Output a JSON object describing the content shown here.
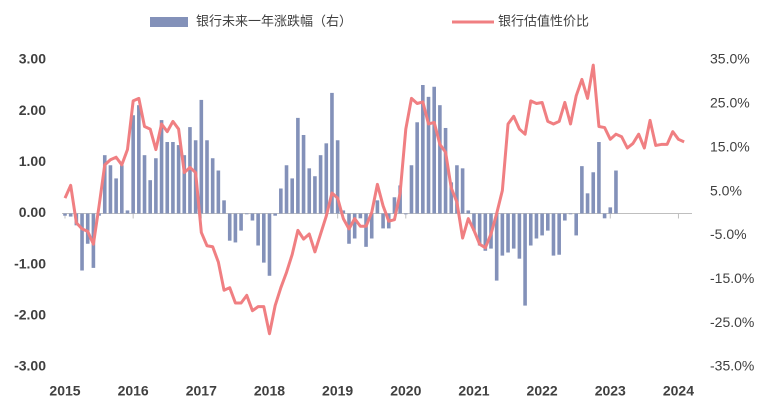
{
  "chart_data": {
    "type": "combo",
    "categories": [
      "2015",
      null,
      null,
      null,
      null,
      null,
      null,
      null,
      null,
      null,
      null,
      null,
      "2016",
      null,
      null,
      null,
      null,
      null,
      null,
      null,
      null,
      null,
      null,
      null,
      "2017",
      null,
      null,
      null,
      null,
      null,
      null,
      null,
      null,
      null,
      null,
      null,
      "2018",
      null,
      null,
      null,
      null,
      null,
      null,
      null,
      null,
      null,
      null,
      null,
      "2019",
      null,
      null,
      null,
      null,
      null,
      null,
      null,
      null,
      null,
      null,
      null,
      "2020",
      null,
      null,
      null,
      null,
      null,
      null,
      null,
      null,
      null,
      null,
      null,
      "2021",
      null,
      null,
      null,
      null,
      null,
      null,
      null,
      null,
      null,
      null,
      null,
      "2022",
      null,
      null,
      null,
      null,
      null,
      null,
      null,
      null,
      null,
      null,
      null,
      "2023",
      null,
      null,
      null,
      null,
      null,
      null,
      null,
      null,
      null,
      null,
      null,
      "2024",
      null
    ],
    "series": [
      {
        "name": "银行未来一年涨跌幅（右）",
        "type": "bar",
        "axis": "y2",
        "color": "#8391b9",
        "values": [
          -0.5,
          -0.7,
          -2.7,
          -13,
          -6.9,
          -12.4,
          -0.5,
          13.3,
          11,
          8,
          11,
          0.7,
          22.4,
          24.7,
          13.3,
          7.6,
          12.6,
          21.3,
          16.3,
          16.3,
          15.6,
          13.3,
          19.7,
          16.7,
          25.9,
          16.7,
          12.6,
          9.8,
          3,
          -6.2,
          -6.6,
          -3.9,
          0,
          -1.6,
          -7.3,
          -11.2,
          -14.2,
          -0.5,
          5.7,
          11,
          8,
          21.8,
          17.9,
          10.3,
          8.5,
          13.3,
          16,
          27.5,
          16.7,
          0.7,
          -6.9,
          -5.7,
          -1.1,
          -7.6,
          -5.7,
          3,
          -3.4,
          -3.4,
          3.7,
          6.4,
          0,
          11,
          20.8,
          29.3,
          26.6,
          28.9,
          24.7,
          19.5,
          7.1,
          11,
          10.3,
          0.7,
          -3.9,
          -7.3,
          -8.5,
          -8,
          -15.3,
          -9.6,
          -8.9,
          -8,
          -10.3,
          -21,
          -7.3,
          -5.7,
          -5,
          -3.9,
          -9.6,
          -9.4,
          -1.6,
          0,
          -5,
          10.8,
          4.6,
          9.4,
          16.3,
          -1.1,
          1.4,
          9.8,
          null,
          null,
          null,
          null,
          null,
          null,
          null,
          null,
          null,
          null,
          null,
          null
        ]
      },
      {
        "name": "银行估值性价比",
        "type": "line",
        "axis": "y",
        "color": "#f07f82",
        "values": [
          0.3,
          0.55,
          -0.18,
          -0.3,
          -0.35,
          -0.6,
          0.15,
          0.95,
          1.05,
          1.1,
          0.95,
          1.25,
          2.2,
          2.25,
          1.7,
          1.65,
          1.25,
          1.75,
          1.6,
          1.8,
          1.65,
          0.8,
          0.9,
          0.8,
          -0.37,
          -0.63,
          -0.65,
          -0.95,
          -1.5,
          -1.45,
          -1.75,
          -1.75,
          -1.6,
          -1.9,
          -1.82,
          -1.82,
          -2.35,
          -1.8,
          -1.45,
          -1.15,
          -0.8,
          -0.33,
          -0.5,
          -0.4,
          -0.75,
          -0.4,
          -0.05,
          0.4,
          0.3,
          -0.1,
          -0.3,
          -0.1,
          -0.25,
          -0.25,
          0.02,
          0.57,
          0.15,
          -0.15,
          -0.12,
          0.4,
          1.65,
          2.25,
          2.15,
          2.18,
          1.75,
          1.78,
          1.35,
          1.2,
          0.5,
          0.22,
          -0.48,
          -0.1,
          -0.33,
          -0.6,
          -0.67,
          -0.4,
          0,
          0.45,
          1.75,
          1.9,
          1.65,
          1.55,
          2.2,
          2.15,
          2.17,
          1.8,
          1.75,
          1.8,
          2.17,
          1.75,
          2.3,
          2.62,
          2.25,
          2.9,
          1.7,
          1.68,
          1.45,
          1.55,
          1.5,
          1.28,
          1.37,
          1.55,
          1.28,
          1.82,
          1.33,
          1.35,
          1.35,
          1.6,
          1.45,
          1.4
        ]
      }
    ],
    "ylim": [
      -3,
      3
    ],
    "yticks": [
      {
        "value": -3,
        "label": "-3.00"
      },
      {
        "value": -2,
        "label": "-2.00"
      },
      {
        "value": -1,
        "label": "-1.00"
      },
      {
        "value": 0,
        "label": "0.00"
      },
      {
        "value": 1,
        "label": "1.00"
      },
      {
        "value": 2,
        "label": "2.00"
      },
      {
        "value": 3,
        "label": "3.00"
      }
    ],
    "y2lim": [
      -35,
      35
    ],
    "y2ticks": [
      {
        "value": -35,
        "label": "-35.0%"
      },
      {
        "value": -25,
        "label": "-25.0%"
      },
      {
        "value": -15,
        "label": "-15.0%"
      },
      {
        "value": -5,
        "label": "-5.0%"
      },
      {
        "value": 5,
        "label": "5.0%"
      },
      {
        "value": 15,
        "label": "15.0%"
      },
      {
        "value": 25,
        "label": "25.0%"
      },
      {
        "value": 35,
        "label": "35.0%"
      }
    ],
    "legend": "top",
    "grid": false
  }
}
